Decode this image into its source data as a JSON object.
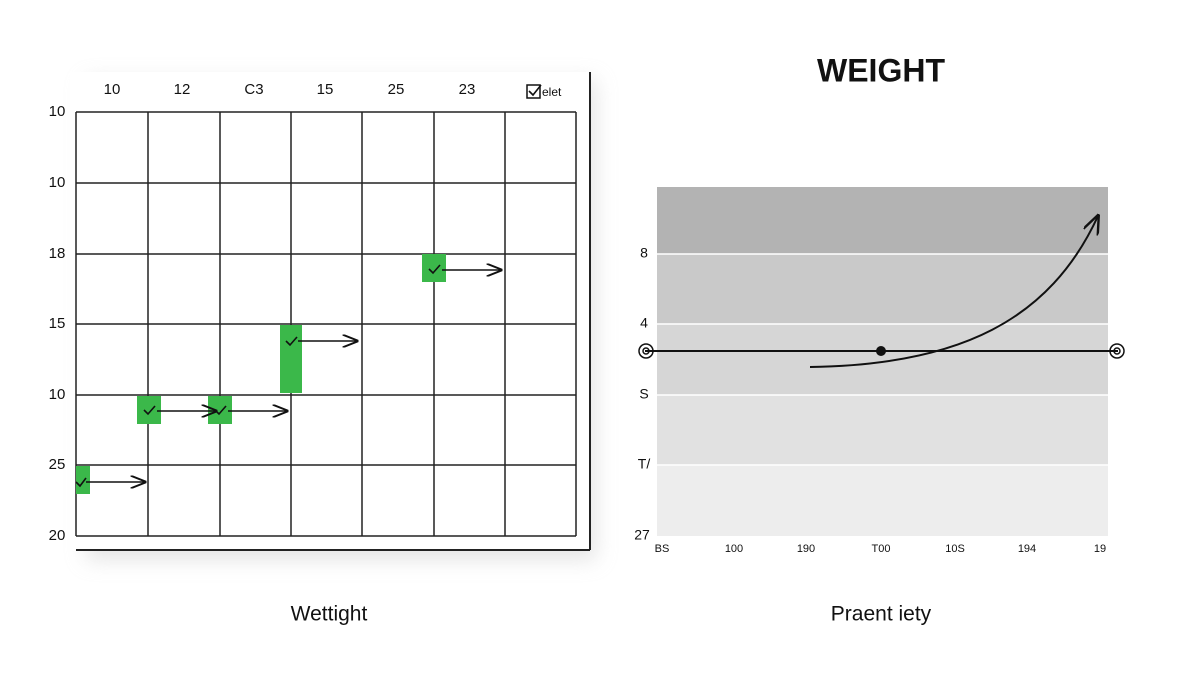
{
  "left_panel": {
    "column_labels": [
      "10",
      "12",
      "C3",
      "15",
      "25",
      "23"
    ],
    "checkbox_label": "elet",
    "row_labels": [
      "10",
      "10",
      "18",
      "15",
      "10",
      "25",
      "20"
    ],
    "caption": "Wettight"
  },
  "right_panel": {
    "title": "WEIGHT",
    "y_labels": [
      "8",
      "4",
      "S",
      "T/",
      "27"
    ],
    "x_labels": [
      "BS",
      "100",
      "190",
      "T00",
      "10S",
      "194",
      "19"
    ],
    "caption": "Praent iety"
  }
}
